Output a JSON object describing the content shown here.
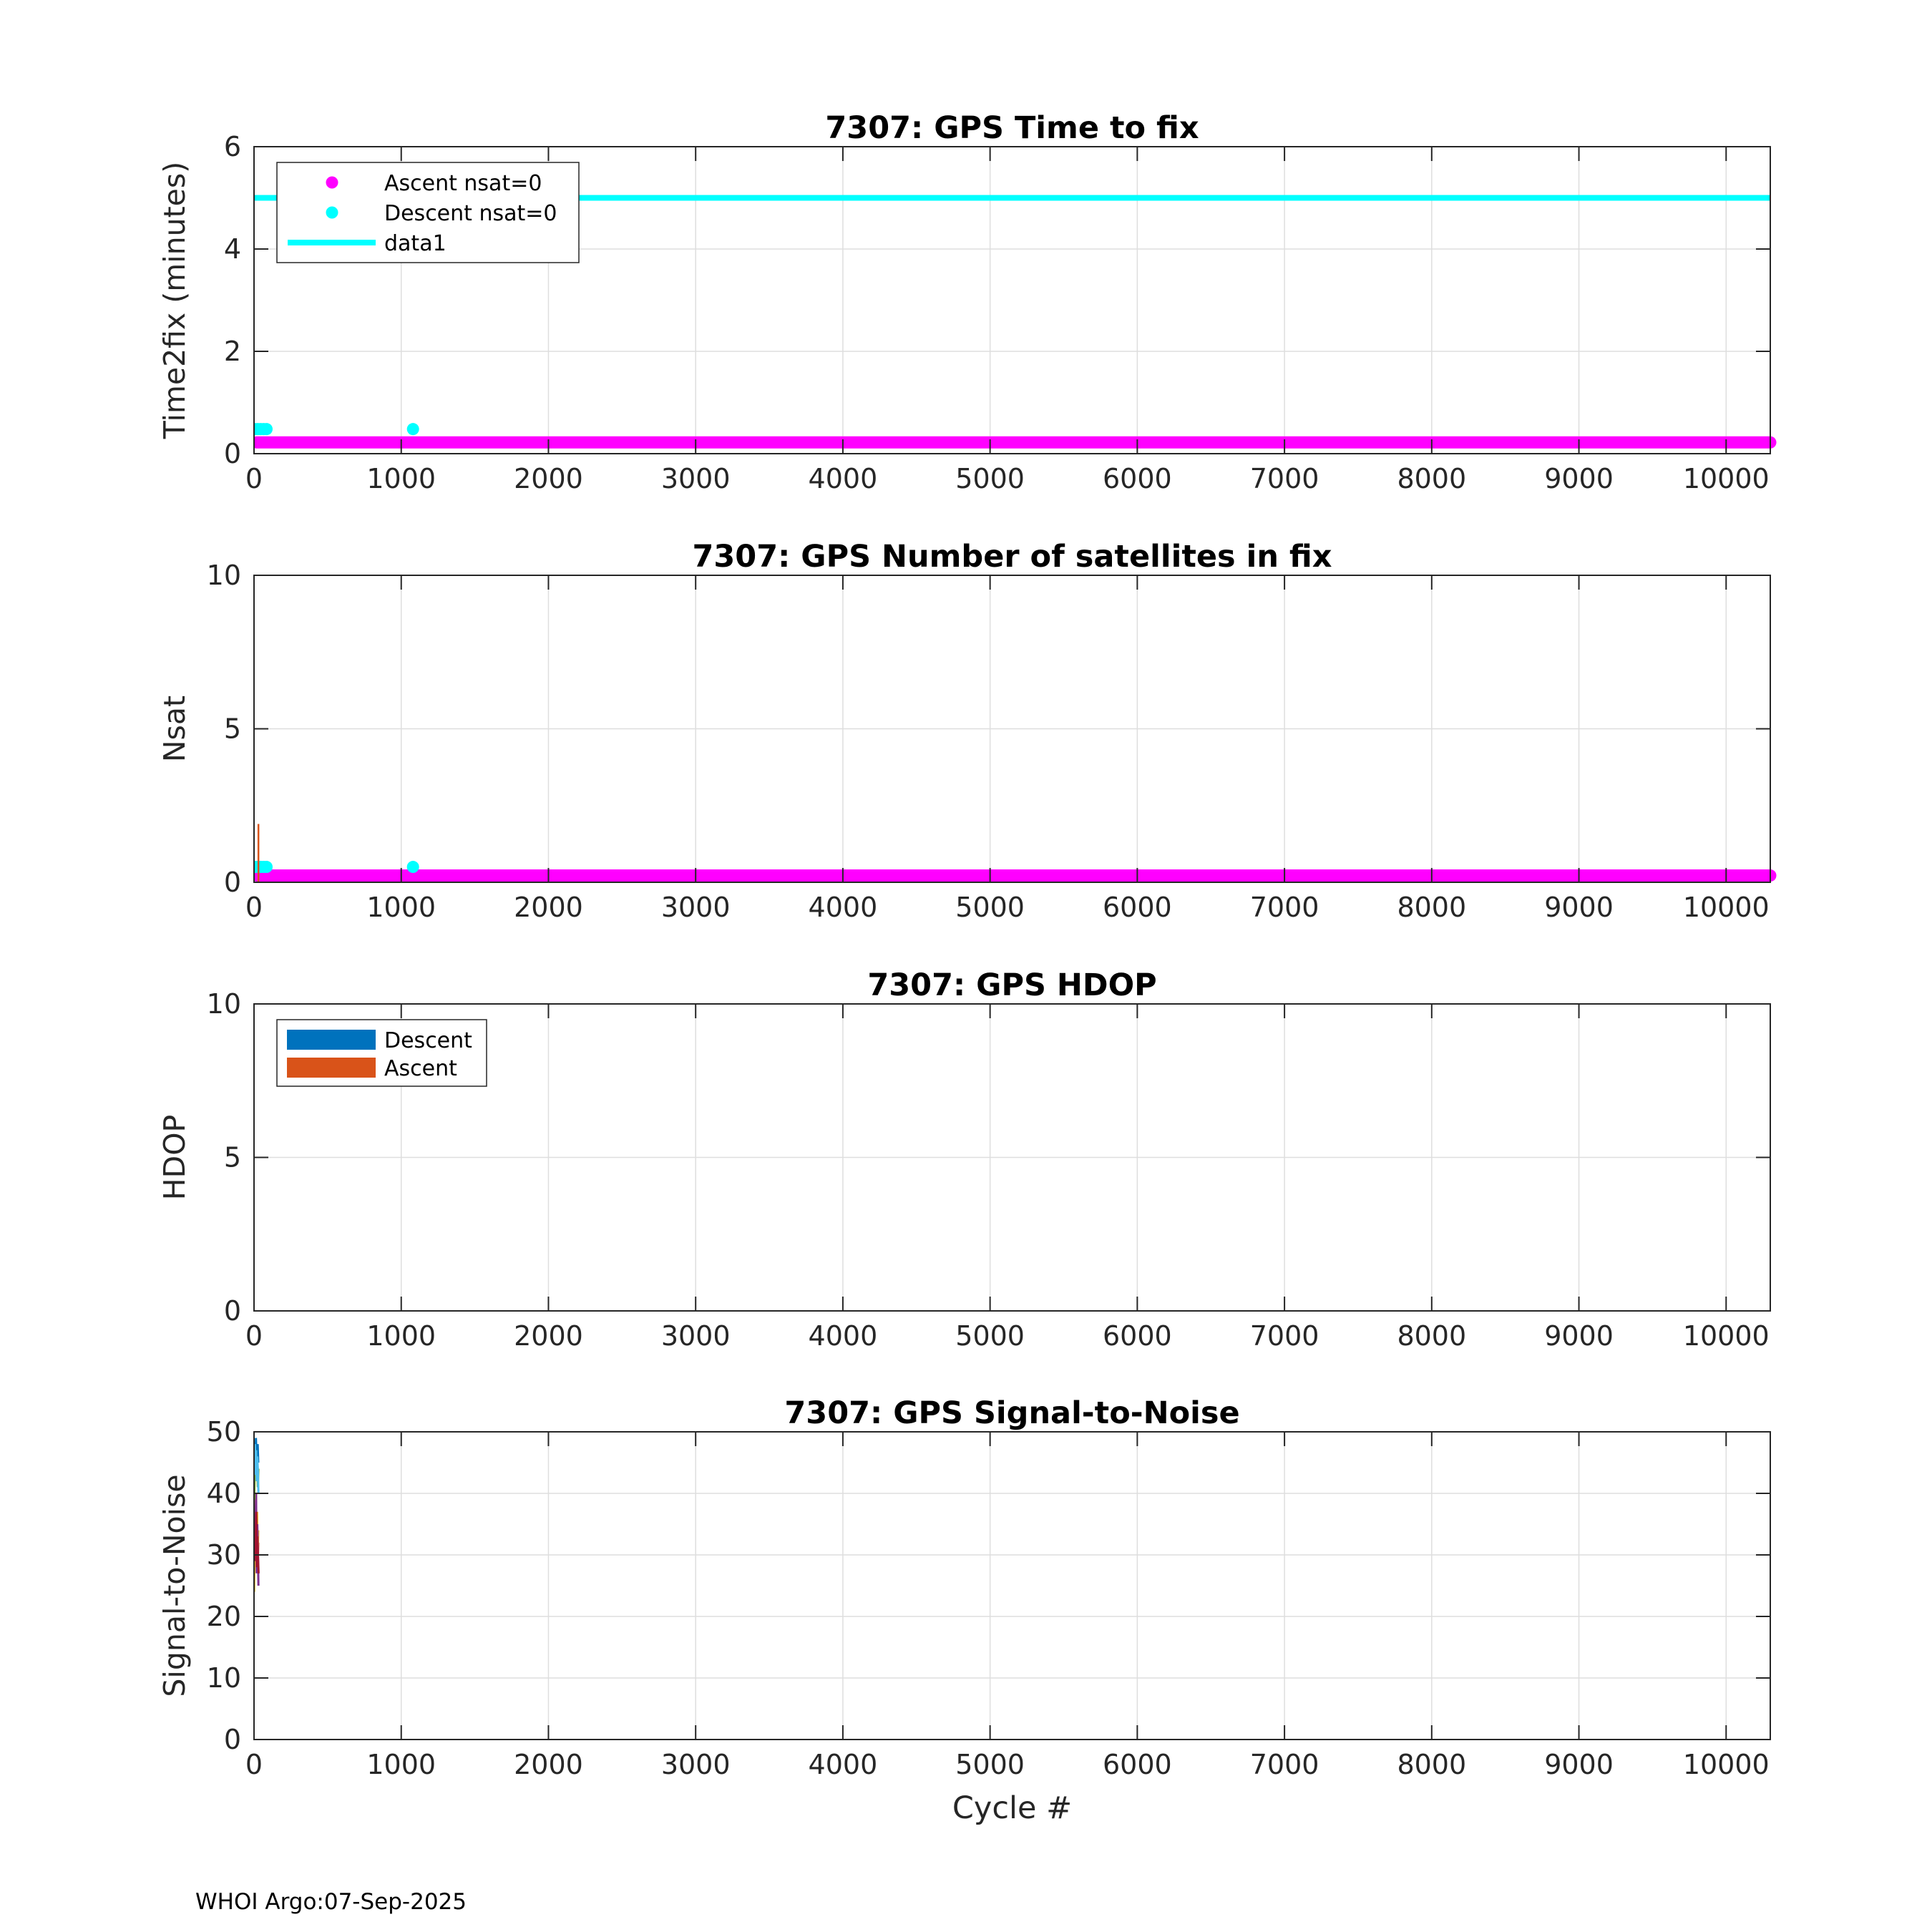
{
  "footer": "WHOI Argo:07-Sep-2025",
  "colors": {
    "ascent_marker": "#ff00ff",
    "descent_marker": "#00ffff",
    "hdop_descent": "#0072bd",
    "hdop_ascent": "#d95319",
    "grid": "#dedede",
    "axis": "#262626"
  },
  "chart_data": [
    {
      "id": "time2fix",
      "type": "scatter",
      "title": "7307: GPS Time to fix",
      "xlabel": "",
      "ylabel": "Time2fix (minutes)",
      "xlim": [
        0,
        10300
      ],
      "ylim": [
        0,
        6
      ],
      "xticks": [
        0,
        1000,
        2000,
        3000,
        4000,
        5000,
        6000,
        7000,
        8000,
        9000,
        10000
      ],
      "yticks": [
        0,
        2,
        4,
        6
      ],
      "grid": true,
      "legend": {
        "placement": "top-left",
        "entries": [
          "Ascent nsat=0",
          "Descent nsat=0",
          "data1"
        ]
      },
      "series": [
        {
          "name": "Ascent nsat=0",
          "kind": "markers-band",
          "color": "#ff00ff",
          "x_range": [
            0,
            10300
          ],
          "y": 0.22
        },
        {
          "name": "Descent nsat=0",
          "kind": "markers",
          "color": "#00ffff",
          "x": [
            5,
            25,
            45,
            65,
            85,
            1080
          ],
          "y": [
            0.48,
            0.48,
            0.48,
            0.48,
            0.48,
            0.48
          ]
        },
        {
          "name": "data1",
          "kind": "line",
          "color": "#00ffff",
          "x": [
            0,
            10300
          ],
          "y": [
            5,
            5
          ]
        }
      ]
    },
    {
      "id": "nsat",
      "type": "scatter",
      "title": "7307: GPS Number of satellites in fix",
      "xlabel": "",
      "ylabel": "Nsat",
      "xlim": [
        0,
        10300
      ],
      "ylim": [
        0,
        10
      ],
      "xticks": [
        0,
        1000,
        2000,
        3000,
        4000,
        5000,
        6000,
        7000,
        8000,
        9000,
        10000
      ],
      "yticks": [
        0,
        5,
        10
      ],
      "grid": true,
      "series": [
        {
          "kind": "markers-band",
          "color": "#ff00ff",
          "x_range": [
            0,
            10300
          ],
          "y": 0.22
        },
        {
          "kind": "markers",
          "color": "#00ffff",
          "x": [
            5,
            25,
            45,
            65,
            85,
            1080
          ],
          "y": [
            0.5,
            0.5,
            0.5,
            0.5,
            0.5,
            0.5
          ]
        },
        {
          "kind": "stem",
          "color": "#d95319",
          "x": [
            30
          ],
          "y": [
            1.9
          ]
        }
      ]
    },
    {
      "id": "hdop",
      "type": "bar",
      "title": "7307: GPS HDOP",
      "xlabel": "",
      "ylabel": "HDOP",
      "xlim": [
        0,
        10300
      ],
      "ylim": [
        0,
        10
      ],
      "xticks": [
        0,
        1000,
        2000,
        3000,
        4000,
        5000,
        6000,
        7000,
        8000,
        9000,
        10000
      ],
      "yticks": [
        0,
        5,
        10
      ],
      "grid": true,
      "legend": {
        "placement": "top-left",
        "entries": [
          "Descent",
          "Ascent"
        ]
      },
      "series": [
        {
          "name": "Descent",
          "color": "#0072bd",
          "x": [],
          "values": []
        },
        {
          "name": "Ascent",
          "color": "#d95319",
          "x": [],
          "values": []
        }
      ]
    },
    {
      "id": "snr",
      "type": "line",
      "title": "7307: GPS Signal-to-Noise",
      "xlabel": "Cycle #",
      "ylabel": "Signal-to-Noise",
      "xlim": [
        0,
        10300
      ],
      "ylim": [
        0,
        50
      ],
      "xticks": [
        0,
        1000,
        2000,
        3000,
        4000,
        5000,
        6000,
        7000,
        8000,
        9000,
        10000
      ],
      "yticks": [
        0,
        10,
        20,
        30,
        40,
        50
      ],
      "grid": true,
      "series": [
        {
          "color": "#0072bd",
          "x": [
            1,
            5,
            9,
            13,
            17,
            21,
            25,
            29
          ],
          "values": [
            41,
            47,
            44,
            49,
            46,
            43,
            48,
            45
          ]
        },
        {
          "color": "#d95319",
          "x": [
            1,
            5,
            9,
            13,
            17,
            21,
            25,
            29
          ],
          "values": [
            33,
            38,
            31,
            36,
            30,
            34,
            28,
            32
          ]
        },
        {
          "color": "#edb120",
          "x": [
            1,
            5,
            9,
            13,
            17,
            21,
            25,
            29
          ],
          "values": [
            24,
            35,
            29,
            40,
            33,
            37,
            30,
            34
          ]
        },
        {
          "color": "#7e2f8e",
          "x": [
            2,
            6,
            10,
            14,
            18,
            22,
            26,
            30
          ],
          "values": [
            30,
            36,
            33,
            40,
            27,
            35,
            31,
            25
          ]
        },
        {
          "color": "#77ac30",
          "x": [
            2,
            6,
            10,
            14,
            18,
            22,
            26,
            30
          ],
          "values": [
            39,
            45,
            42,
            47,
            43,
            46,
            41,
            44
          ]
        },
        {
          "color": "#4dbeee",
          "x": [
            2,
            6,
            10,
            14,
            18,
            22,
            26,
            30
          ],
          "values": [
            43,
            48,
            45,
            47,
            42,
            46,
            44,
            40
          ]
        },
        {
          "color": "#a2142f",
          "x": [
            3,
            7,
            11,
            15,
            19,
            23,
            27,
            31
          ],
          "values": [
            29,
            34,
            31,
            37,
            28,
            33,
            30,
            27
          ]
        }
      ]
    }
  ]
}
